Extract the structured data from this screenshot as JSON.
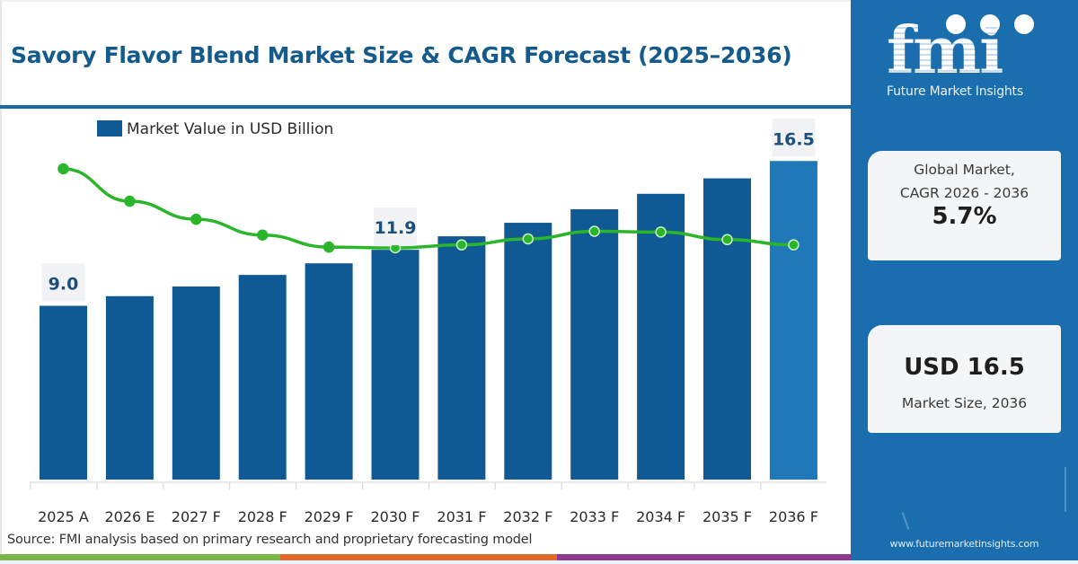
{
  "title": "Savory Flavor Blend Market Size & CAGR Forecast (2025–2036)",
  "source": "Source: FMI analysis based on primary research and proprietary forecasting model",
  "brand": {
    "logo_text": "fmi",
    "tagline": "Future Market Insights",
    "website": "www.futuremarketinsights.com",
    "colors": {
      "primary": "#1b6ead",
      "bar": "#0f5a94",
      "bar_highlight": "#1f78b8",
      "line": "#2bb52b",
      "title": "#145a8a"
    }
  },
  "cards": {
    "cagr": {
      "line1": "Global Market,",
      "line2": "CAGR 2026 - 2036",
      "value": "5.7%"
    },
    "size": {
      "value": "USD 16.5",
      "caption": "Market Size, 2036"
    }
  },
  "bottom_strip_colors": [
    "#7ab648",
    "#e06a2c",
    "#8e3b8f"
  ],
  "chart_data": {
    "type": "bar",
    "title": "Savory Flavor Blend Market Size & CAGR Forecast (2025–2036)",
    "xlabel": "",
    "ylabel": "",
    "categories": [
      "2025 A",
      "2026 E",
      "2027 F",
      "2028 F",
      "2029 F",
      "2030 F",
      "2031 F",
      "2032 F",
      "2033 F",
      "2034 F",
      "2035 F",
      "2036 F"
    ],
    "series": [
      {
        "name": "Market Value in USD Billion",
        "type": "bar",
        "values": [
          9.0,
          9.5,
          10.0,
          10.6,
          11.2,
          11.9,
          12.6,
          13.3,
          14.0,
          14.8,
          15.6,
          16.5
        ]
      },
      {
        "name": "Growth trend (unlabeled)",
        "type": "line",
        "relative_values": [
          1.0,
          0.57,
          0.33,
          0.12,
          -0.04,
          -0.05,
          -0.01,
          0.07,
          0.17,
          0.16,
          0.06,
          -0.01
        ]
      }
    ],
    "data_labels": [
      {
        "category": "2025 A",
        "text": "9.0"
      },
      {
        "category": "2030 F",
        "text": "11.9"
      },
      {
        "category": "2036 F",
        "text": "16.5"
      }
    ],
    "highlight_category": "2036 F",
    "legend": {
      "entries": [
        "Market Value in USD Billion"
      ],
      "position": "top-left"
    },
    "ylim": [
      0,
      17.5
    ],
    "grid": false
  }
}
